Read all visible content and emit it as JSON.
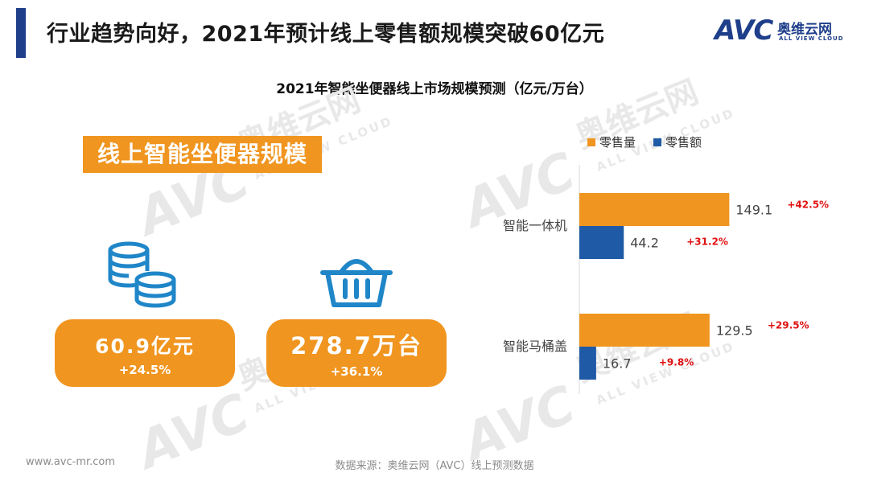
{
  "header": {
    "title": "行业趋势向好，2021年预计线上零售额规模突破60亿元"
  },
  "logo": {
    "brand": "AVC",
    "chinese_name": "奥维云网",
    "english_name": "ALL VIEW CLOUD"
  },
  "watermark": {
    "brand": "AVC",
    "chinese_name": "奥维云网",
    "english_name": "ALL VIEW CLOUD"
  },
  "left_panel": {
    "heading": "线上智能坐便器规模",
    "revenue": {
      "value": "60.9亿元",
      "growth": "+24.5%",
      "icon": "coins-icon"
    },
    "volume": {
      "value": "278.7万台",
      "growth": "+36.1%",
      "icon": "shopping-basket-icon"
    }
  },
  "footer": {
    "website": "www.avc-mr.com",
    "source": "数据来源：奥维云网（AVC）线上预测数据"
  },
  "colors": {
    "accent_bar": "#1f3f8a",
    "orange": "#f0951f",
    "blue": "#1f5aa6",
    "growth_red": "#e01010"
  },
  "chart_data": {
    "type": "bar",
    "orientation": "horizontal",
    "title": "2021年智能坐便器线上市场规模预测（亿元/万台）",
    "categories": [
      "智能一体机",
      "智能马桶盖"
    ],
    "series": [
      {
        "name": "零售量",
        "color": "#f0951f",
        "values": [
          149.1,
          129.5
        ],
        "growth": [
          "+42.5%",
          "+29.5%"
        ]
      },
      {
        "name": "零售额",
        "color": "#1f5aa6",
        "values": [
          44.2,
          16.7
        ],
        "growth": [
          "+31.2%",
          "+9.8%"
        ]
      }
    ],
    "xlim": [
      0,
      160
    ],
    "legend_position": "top",
    "grid": false
  }
}
